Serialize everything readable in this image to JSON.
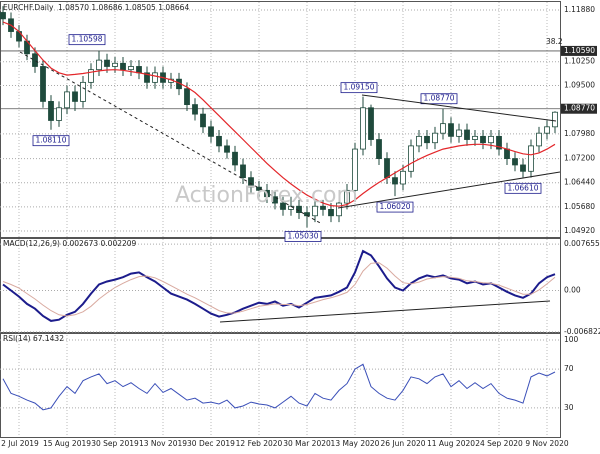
{
  "chart_data": [
    {
      "type": "candlestick",
      "title": "EURCHF.Daily",
      "subtitle": "1.08570 1.08686 1.08505 1.08664",
      "categories": [
        null,
        null,
        "2 Jul 2019",
        null,
        null,
        null,
        null,
        null,
        "15 Aug 2019",
        null,
        null,
        null,
        null,
        null,
        "30 Sep 2019",
        null,
        null,
        null,
        null,
        null,
        "13 Nov 2019",
        null,
        null,
        null,
        null,
        null,
        "30 Dec 2019",
        null,
        null,
        null,
        null,
        null,
        "12 Feb 2020",
        null,
        null,
        null,
        null,
        null,
        "30 Mar 2020",
        null,
        null,
        null,
        null,
        null,
        "13 May 2020",
        null,
        null,
        null,
        null,
        null,
        "26 Jun 2020",
        null,
        null,
        null,
        null,
        null,
        "11 Aug 2020",
        null,
        null,
        null,
        null,
        null,
        "24 Sep 2020",
        null,
        null,
        null,
        null,
        null,
        "9 Nov 2020",
        null
      ],
      "open": [
        1.118,
        1.116,
        1.112,
        1.109,
        1.105,
        1.101,
        1.09,
        1.084,
        1.088,
        1.093,
        1.09,
        1.096,
        1.1,
        1.103,
        1.101,
        1.102,
        1.1,
        1.101,
        1.099,
        1.096,
        1.099,
        1.096,
        1.097,
        1.094,
        1.089,
        1.086,
        1.082,
        1.079,
        1.076,
        1.074,
        1.07,
        1.066,
        1.063,
        1.062,
        1.06,
        1.058,
        1.056,
        1.057,
        1.055,
        1.054,
        1.057,
        1.056,
        1.054,
        1.058,
        1.062,
        1.075,
        1.088,
        1.078,
        1.072,
        1.066,
        1.064,
        1.068,
        1.076,
        1.079,
        1.077,
        1.08,
        1.083,
        1.079,
        1.081,
        1.078,
        1.079,
        1.077,
        1.079,
        1.075,
        1.072,
        1.07,
        1.068,
        1.076,
        1.08,
        1.082
      ],
      "high": [
        1.12,
        1.118,
        1.114,
        1.111,
        1.107,
        1.103,
        1.092,
        1.09,
        1.095,
        1.095,
        1.098,
        1.102,
        1.106,
        1.105,
        1.104,
        1.104,
        1.103,
        1.103,
        1.101,
        1.101,
        1.101,
        1.099,
        1.099,
        1.096,
        1.091,
        1.088,
        1.084,
        1.081,
        1.078,
        1.076,
        1.072,
        1.068,
        1.065,
        1.064,
        1.062,
        1.06,
        1.06,
        1.059,
        1.057,
        1.059,
        1.059,
        1.058,
        1.06,
        1.064,
        1.077,
        1.0915,
        1.089,
        1.08,
        1.074,
        1.068,
        1.07,
        1.078,
        1.081,
        1.081,
        1.082,
        1.0877,
        1.085,
        1.083,
        1.083,
        1.081,
        1.081,
        1.081,
        1.081,
        1.077,
        1.074,
        1.072,
        1.078,
        1.082,
        1.084,
        1.0869
      ],
      "low": [
        1.114,
        1.11,
        1.107,
        1.103,
        1.099,
        1.088,
        1.0811,
        1.082,
        1.086,
        1.087,
        1.088,
        1.094,
        1.098,
        1.099,
        1.099,
        1.098,
        1.098,
        1.097,
        1.094,
        1.094,
        1.094,
        1.094,
        1.092,
        1.087,
        1.084,
        1.08,
        1.077,
        1.074,
        1.072,
        1.068,
        1.064,
        1.061,
        1.06,
        1.058,
        1.056,
        1.054,
        1.054,
        1.053,
        1.0503,
        1.052,
        1.054,
        1.052,
        1.052,
        1.056,
        1.06,
        1.073,
        1.076,
        1.07,
        1.064,
        1.0602,
        1.062,
        1.066,
        1.074,
        1.075,
        1.075,
        1.078,
        1.077,
        1.077,
        1.076,
        1.076,
        1.075,
        1.075,
        1.073,
        1.07,
        1.068,
        1.0661,
        1.066,
        1.074,
        1.078,
        1.08
      ],
      "close": [
        1.116,
        1.112,
        1.109,
        1.105,
        1.101,
        1.09,
        1.084,
        1.088,
        1.093,
        1.09,
        1.096,
        1.1,
        1.103,
        1.101,
        1.102,
        1.1,
        1.101,
        1.099,
        1.096,
        1.099,
        1.096,
        1.097,
        1.094,
        1.089,
        1.086,
        1.082,
        1.079,
        1.076,
        1.074,
        1.07,
        1.066,
        1.063,
        1.062,
        1.06,
        1.058,
        1.056,
        1.057,
        1.055,
        1.054,
        1.057,
        1.056,
        1.054,
        1.058,
        1.062,
        1.075,
        1.088,
        1.078,
        1.072,
        1.066,
        1.064,
        1.068,
        1.076,
        1.079,
        1.077,
        1.08,
        1.083,
        1.079,
        1.081,
        1.078,
        1.079,
        1.077,
        1.079,
        1.075,
        1.072,
        1.07,
        1.068,
        1.076,
        1.08,
        1.082,
        1.0866
      ],
      "up_color": "#ffffff",
      "down_color": "#1f4a3c",
      "color": "#1f4a3c",
      "lines": [
        {
          "color": "#e3262a",
          "values": [
            1.115,
            1.114,
            1.112,
            1.109,
            1.106,
            1.103,
            1.1005,
            1.099,
            1.0983,
            1.0985,
            1.0988,
            1.0992,
            1.0996,
            1.0999,
            1.1,
            1.0998,
            1.0994,
            1.099,
            1.0985,
            1.098,
            1.0975,
            1.0968,
            1.0958,
            1.0945,
            1.0928,
            1.0905,
            1.088,
            1.0855,
            1.083,
            1.0805,
            1.078,
            1.0755,
            1.073,
            1.0705,
            1.0682,
            1.066,
            1.064,
            1.0622,
            1.0605,
            1.0592,
            1.058,
            1.0572,
            1.057,
            1.0575,
            1.059,
            1.061,
            1.0628,
            1.0645,
            1.066,
            1.0675,
            1.069,
            1.0705,
            1.0718,
            1.073,
            1.074,
            1.075,
            1.0755,
            1.076,
            1.0763,
            1.0765,
            1.0765,
            1.0762,
            1.0757,
            1.075,
            1.0742,
            1.0735,
            1.0732,
            1.0738,
            1.075,
            1.0765
          ]
        }
      ],
      "ylim": [
        1.047,
        1.1213
      ],
      "yticks": [
        {
          "value": 1.1188,
          "label": "1.11880"
        },
        {
          "value": 1.1025,
          "label": "1.10250"
        },
        {
          "value": 1.095,
          "label": "1.09500"
        },
        {
          "value": 1.0798,
          "label": "1.07980"
        },
        {
          "value": 1.072,
          "label": "1.07200"
        },
        {
          "value": 1.0644,
          "label": "1.06440"
        },
        {
          "value": 1.0568,
          "label": "1.05680"
        },
        {
          "value": 1.0492,
          "label": "1.04920"
        }
      ],
      "levels": [
        {
          "value": 1.1059,
          "label": "1.10590"
        },
        {
          "value": 1.0877,
          "label": "1.08770"
        }
      ],
      "annotations": [
        {
          "value": 1.10598,
          "label": "1.10598"
        },
        {
          "value": 1.0811,
          "label": "1.08110"
        },
        {
          "value": 1.0503,
          "label": "1.05030"
        },
        {
          "value": 1.0915,
          "label": "1.09150"
        },
        {
          "value": 1.0602,
          "label": "1.06020"
        },
        {
          "value": 1.0877,
          "label": "1.08770"
        },
        {
          "value": 1.0661,
          "label": "1.06610"
        }
      ],
      "fib_label": "38.2",
      "watermark": "ActionForex.com",
      "grid": true
    },
    {
      "type": "line",
      "title": "MACD(12,26,9) 0.002673 0.002209",
      "series": [
        {
          "color": "#1c1c8c",
          "values": [
            0.001,
            0.0,
            -0.001,
            -0.0022,
            -0.003,
            -0.0042,
            -0.005,
            -0.0048,
            -0.004,
            -0.0035,
            -0.0022,
            -0.0005,
            0.001,
            0.0015,
            0.0018,
            0.0022,
            0.0028,
            0.003,
            0.0022,
            0.0015,
            0.0005,
            -0.0005,
            -0.001,
            -0.0015,
            -0.0022,
            -0.003,
            -0.0038,
            -0.0043,
            -0.004,
            -0.0036,
            -0.003,
            -0.0025,
            -0.002,
            -0.0022,
            -0.0018,
            -0.0025,
            -0.0022,
            -0.0028,
            -0.002,
            -0.0012,
            -0.001,
            -0.0008,
            -0.0002,
            0.0005,
            0.003,
            0.0065,
            0.0058,
            0.004,
            0.002,
            0.0005,
            0.0,
            0.0012,
            0.002,
            0.0025,
            0.0022,
            0.0025,
            0.002,
            0.0018,
            0.0012,
            0.0015,
            0.001,
            0.0012,
            0.0005,
            -0.0002,
            -0.0008,
            -0.0012,
            -0.0005,
            0.0012,
            0.0022,
            0.0027
          ]
        },
        {
          "color": "#d9aaa0",
          "values": [
            0.0015,
            0.001,
            0.0004,
            -0.0005,
            -0.0014,
            -0.0024,
            -0.0033,
            -0.004,
            -0.0042,
            -0.004,
            -0.0035,
            -0.0026,
            -0.0014,
            -0.0004,
            0.0005,
            0.0012,
            0.0018,
            0.0023,
            0.0024,
            0.0021,
            0.0015,
            0.0008,
            0.0001,
            -0.0006,
            -0.0012,
            -0.0019,
            -0.0026,
            -0.0033,
            -0.0037,
            -0.0037,
            -0.0034,
            -0.003,
            -0.0026,
            -0.0024,
            -0.0022,
            -0.0023,
            -0.0023,
            -0.0025,
            -0.0023,
            -0.0019,
            -0.0015,
            -0.0012,
            -0.0008,
            -0.0003,
            0.001,
            0.0032,
            0.0045,
            0.0046,
            0.0037,
            0.0024,
            0.0013,
            0.0011,
            0.0014,
            0.0019,
            0.0021,
            0.0023,
            0.0022,
            0.002,
            0.0016,
            0.0015,
            0.0013,
            0.0012,
            0.0009,
            0.0004,
            -0.0001,
            -0.0006,
            -0.0006,
            0.0001,
            0.0011,
            0.0022
          ]
        }
      ],
      "ylim": [
        -0.007,
        0.0085
      ],
      "yticks": [
        0.007655,
        {
          "value": 0,
          "label": "0.00"
        },
        -0.006822
      ],
      "grid": true
    },
    {
      "type": "line",
      "title": "RSI(14) 67.1432",
      "series": [
        {
          "color": "#3a4fb8",
          "values": [
            60,
            45,
            42,
            38,
            35,
            28,
            30,
            42,
            52,
            45,
            58,
            62,
            65,
            55,
            58,
            52,
            56,
            50,
            45,
            55,
            46,
            50,
            44,
            38,
            40,
            35,
            36,
            34,
            38,
            30,
            32,
            36,
            34,
            33,
            30,
            36,
            42,
            35,
            32,
            45,
            40,
            38,
            48,
            55,
            70,
            75,
            52,
            45,
            40,
            38,
            48,
            62,
            60,
            55,
            62,
            65,
            52,
            58,
            50,
            56,
            50,
            55,
            45,
            40,
            38,
            35,
            62,
            66,
            63,
            67
          ]
        }
      ],
      "ylim": [
        0,
        100
      ],
      "yticks": [
        100,
        70,
        30
      ],
      "grid": true
    }
  ]
}
